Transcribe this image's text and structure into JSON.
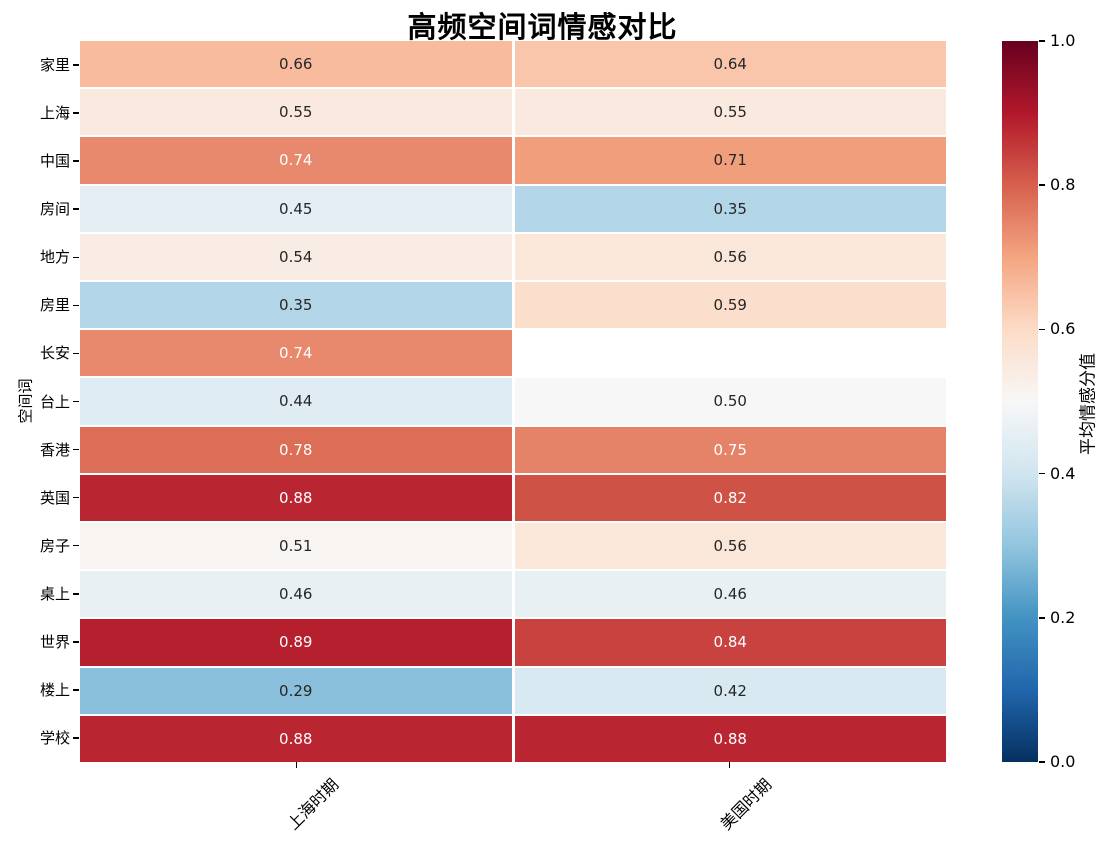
{
  "chart_data": {
    "type": "heatmap",
    "title": "高频空间词情感对比",
    "ylabel": "空间词",
    "xlabel": "",
    "colorbar_label": "平均情感分值",
    "rows": [
      "家里",
      "上海",
      "中国",
      "房间",
      "地方",
      "房里",
      "长安",
      "台上",
      "香港",
      "英国",
      "房子",
      "桌上",
      "世界",
      "楼上",
      "学校"
    ],
    "columns": [
      "上海时期",
      "美国时期"
    ],
    "values": [
      [
        0.66,
        0.64
      ],
      [
        0.55,
        0.55
      ],
      [
        0.74,
        0.71
      ],
      [
        0.45,
        0.35
      ],
      [
        0.54,
        0.56
      ],
      [
        0.35,
        0.59
      ],
      [
        0.74,
        null
      ],
      [
        0.44,
        0.5
      ],
      [
        0.78,
        0.75
      ],
      [
        0.88,
        0.82
      ],
      [
        0.51,
        0.56
      ],
      [
        0.46,
        0.46
      ],
      [
        0.89,
        0.84
      ],
      [
        0.29,
        0.42
      ],
      [
        0.88,
        0.88
      ]
    ],
    "value_decimals": 2,
    "vmin": 0.0,
    "vmax": 1.0,
    "colormap": "RdBu_r",
    "colormap_anchors": [
      "#053061",
      "#2166ac",
      "#4393c3",
      "#92c5de",
      "#d1e5f0",
      "#f7f7f7",
      "#fddbc7",
      "#f4a582",
      "#d6604d",
      "#b2182b",
      "#67001f"
    ],
    "colorbar_ticks": [
      1.0,
      0.8,
      0.6,
      0.4,
      0.2,
      0.0
    ],
    "colorbar_tick_decimals": 1,
    "annotation_dark_color": "#262626",
    "annotation_light_color": "#ffffff",
    "missing_cell_color": "#ffffff",
    "grid_line_color": "#ffffff",
    "background": "#ffffff",
    "legend_position": "right",
    "grid": "off"
  }
}
